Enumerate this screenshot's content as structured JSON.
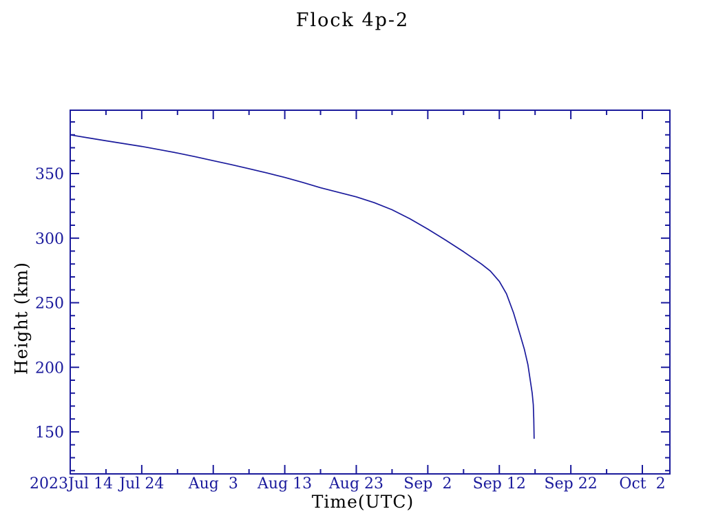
{
  "chart_data": {
    "type": "line",
    "title": "Flock 4p-2",
    "xlabel": "Time(UTC)",
    "ylabel": "Height (km)",
    "grid": false,
    "legend": false,
    "ink_color": "#1A1A9C",
    "line_color": "#1A1A9C",
    "x_axis": {
      "year_label": "2023",
      "start_date": "2023-07-14",
      "unit": "days since 2023 Jul 14",
      "tick_labels": [
        "Jul 14",
        "Jul 24",
        "Aug  3",
        "Aug 13",
        "Aug 23",
        "Sep  2",
        "Sep 12",
        "Sep 22",
        "Oct  2"
      ],
      "tick_days": [
        0,
        10,
        20,
        30,
        40,
        50,
        60,
        70,
        80
      ],
      "minor_tick_step_days": 5,
      "range_days": [
        0,
        83.9
      ]
    },
    "y_axis": {
      "tick_values": [
        150,
        200,
        250,
        300,
        350
      ],
      "minor_tick_step": 10,
      "range": [
        117.5,
        399
      ]
    },
    "series": [
      {
        "name": "Flock 4p-2",
        "points_day_km": [
          [
            0,
            380
          ],
          [
            2.5,
            377.7
          ],
          [
            5,
            375.4
          ],
          [
            7.5,
            373.2
          ],
          [
            10,
            371
          ],
          [
            12.5,
            368.5
          ],
          [
            15,
            365.9
          ],
          [
            17.5,
            363
          ],
          [
            20,
            360
          ],
          [
            22.5,
            357
          ],
          [
            25,
            353.8
          ],
          [
            27.5,
            350.5
          ],
          [
            30,
            347
          ],
          [
            32.5,
            343.2
          ],
          [
            35,
            339
          ],
          [
            37.5,
            335.5
          ],
          [
            40,
            332
          ],
          [
            42.5,
            327.5
          ],
          [
            45,
            322
          ],
          [
            47.5,
            315
          ],
          [
            50,
            307
          ],
          [
            52.5,
            298.5
          ],
          [
            55,
            289.5
          ],
          [
            57.5,
            280
          ],
          [
            58.75,
            274.5
          ],
          [
            60,
            266.5
          ],
          [
            61,
            257
          ],
          [
            62,
            242
          ],
          [
            63,
            223.5
          ],
          [
            63.5,
            214
          ],
          [
            64,
            202
          ],
          [
            64.3,
            191
          ],
          [
            64.6,
            180
          ],
          [
            64.75,
            171
          ],
          [
            64.82,
            160
          ],
          [
            64.87,
            145
          ]
        ]
      }
    ]
  }
}
